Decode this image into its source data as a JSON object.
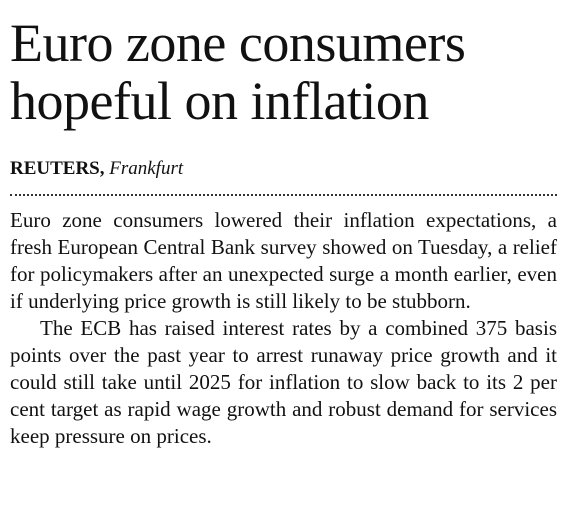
{
  "header": {
    "headline": "Euro zone consumers hopeful on inflation",
    "agency": "REUTERS,",
    "location": "Frankfurt"
  },
  "body": {
    "paragraphs": [
      "Euro zone consumers lowered their inflation expectations, a fresh European Central Bank survey showed on Tuesday, a relief for policymakers after an unexpected surge a month earlier, even if underlying price growth is still likely to be stubborn.",
      "The ECB has raised interest rates by a combined 375 basis points over the past year to arrest runaway price growth and it could still take until 2025 for inflation to slow back to its 2 per cent target as rapid wage growth and robust demand for services keep pressure on prices."
    ]
  }
}
